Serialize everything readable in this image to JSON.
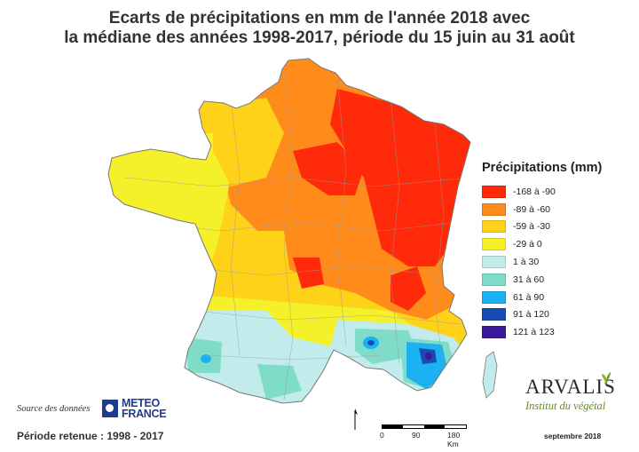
{
  "title": {
    "line1": "Ecarts de précipitations en mm de l'année 2018 avec",
    "line2": "la médiane des années 1998-2017, période du 15 juin au 31 août"
  },
  "legend": {
    "title": "Précipitations (mm)",
    "items": [
      {
        "label": "-168 à -90",
        "color": "#ff2a0a"
      },
      {
        "label": "-89 à -60",
        "color": "#ff8c1a"
      },
      {
        "label": "-59 à -30",
        "color": "#ffd21a"
      },
      {
        "label": "-29 à 0",
        "color": "#f4f02a"
      },
      {
        "label": "1 à 30",
        "color": "#c2ecec"
      },
      {
        "label": "31 à 60",
        "color": "#7fdcc8"
      },
      {
        "label": "61 à 90",
        "color": "#1ab2f0"
      },
      {
        "label": "91 à 120",
        "color": "#1a4ab4"
      },
      {
        "label": "121 à 123",
        "color": "#3a1a9a"
      }
    ]
  },
  "footer": {
    "source_label": "Source des données",
    "meteo_line1": "METEO",
    "meteo_line2": "FRANCE",
    "period": "Période retenue :  1998 - 2017",
    "date": "septembre 2018"
  },
  "scale": {
    "tick0": "0",
    "tick1": "90",
    "tick2": "180 Km"
  },
  "logo": {
    "name": "ARVALIS",
    "subtitle": "Institut du végétal"
  }
}
